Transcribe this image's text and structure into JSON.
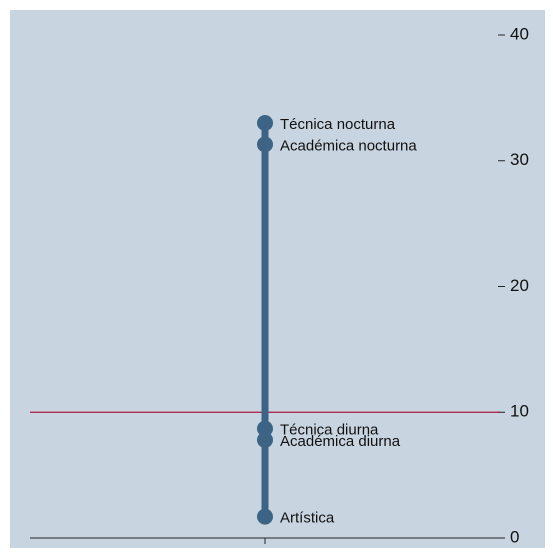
{
  "chart_data": {
    "type": "dotrange",
    "categories": [
      "Técnica nocturna",
      "Académica nocturna",
      "Técnica diurna",
      "Académica diurna",
      "Artística"
    ],
    "values": [
      33.0,
      31.3,
      8.7,
      7.8,
      1.7
    ],
    "color": "#3d6485",
    "reference_line": 10,
    "reference_color": "#a8173f",
    "background": "#c8d5e1",
    "ylim": [
      0,
      40
    ],
    "yticks": [
      0,
      10,
      20,
      30,
      40
    ]
  }
}
